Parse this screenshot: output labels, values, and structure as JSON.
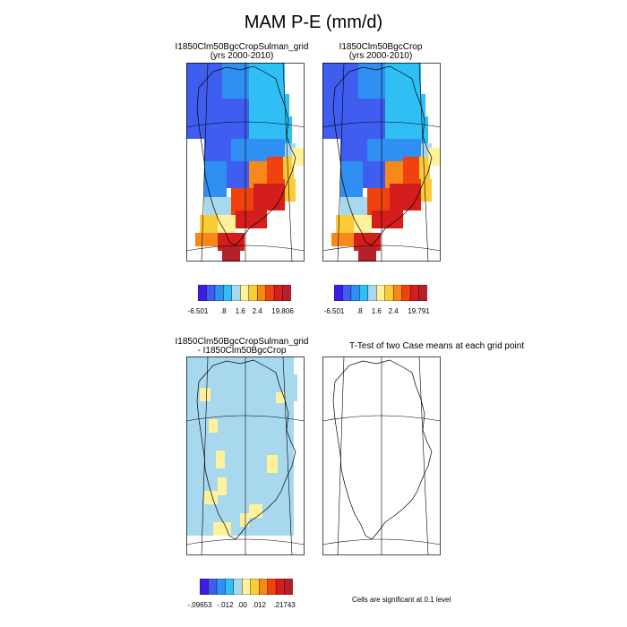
{
  "figure": {
    "title": "MAM P-E (mm/d)"
  },
  "panels": [
    {
      "id": "p1",
      "title_line1": "I1850Clm50BgcCropSulman_grid",
      "title_line2": "(yrs 2000-2010)"
    },
    {
      "id": "p2",
      "title_line1": "I1850Clm50BgcCrop",
      "title_line2": "(yrs 2000-2010)"
    },
    {
      "id": "p3",
      "title_line1": "I1850Clm50BgcCropSulman_grid",
      "title_line2": "- I1850Clm50BgcCrop"
    },
    {
      "id": "p4",
      "title_line1": "T-Test of two Case means at each grid point",
      "title_line2": ""
    }
  ],
  "colorbars": [
    {
      "id": "cb1",
      "colors": [
        "#3a1ee6",
        "#3f5ef0",
        "#2f8ff2",
        "#30bff5",
        "#a8d8ee",
        "#fff29a",
        "#fbcb38",
        "#f9881a",
        "#f0420e",
        "#d41d1d",
        "#b6202a"
      ],
      "labels": [
        "-6.501",
        ".8",
        "1.6",
        "2.4",
        "19.806"
      ]
    },
    {
      "id": "cb2",
      "colors": [
        "#3a1ee6",
        "#3f5ef0",
        "#2f8ff2",
        "#30bff5",
        "#a8d8ee",
        "#fff29a",
        "#fbcb38",
        "#f9881a",
        "#f0420e",
        "#d41d1d",
        "#b6202a"
      ],
      "labels": [
        "-6.501",
        ".8",
        "1.6",
        "2.4",
        "19.791"
      ]
    },
    {
      "id": "cb3",
      "colors": [
        "#3a1ee6",
        "#3f5ef0",
        "#2f8ff2",
        "#30bff5",
        "#a8d8ee",
        "#fff29a",
        "#fbcb38",
        "#f9881a",
        "#f0420e",
        "#d41d1d",
        "#b6202a"
      ],
      "labels": [
        "-.09653",
        "-.012",
        ".00",
        ".012",
        ".21743"
      ]
    }
  ],
  "footnote": "Cells are significant at 0.1 level",
  "chart_data": [
    {
      "type": "heatmap",
      "title": "I1850Clm50BgcCropSulman_grid (yrs 2000-2010)",
      "variable": "MAM P-E",
      "units": "mm/d",
      "colorbar_labels": [
        "-6.501",
        ".8",
        "1.6",
        "2.4",
        "19.806"
      ],
      "pattern": "negative (blue) over northern and central Greenland, positive (orange/red) along the south-east coast and southern tip"
    },
    {
      "type": "heatmap",
      "title": "I1850Clm50BgcCrop (yrs 2000-2010)",
      "variable": "MAM P-E",
      "units": "mm/d",
      "colorbar_labels": [
        "-6.501",
        ".8",
        "1.6",
        "2.4",
        "19.791"
      ],
      "pattern": "nearly identical to panel 1"
    },
    {
      "type": "heatmap",
      "title": "I1850Clm50BgcCropSulman_grid - I1850Clm50BgcCrop",
      "variable": "difference",
      "colorbar_labels": [
        "-.09653",
        "-.012",
        ".00",
        ".012",
        ".21743"
      ],
      "pattern": "mostly small negative (light blue) with scattered small positive cells (light yellow) near the coasts"
    },
    {
      "type": "heatmap",
      "title": "T-Test of two Case means at each grid point",
      "significance_level": 0.1,
      "pattern": "no significant cells shown"
    }
  ]
}
